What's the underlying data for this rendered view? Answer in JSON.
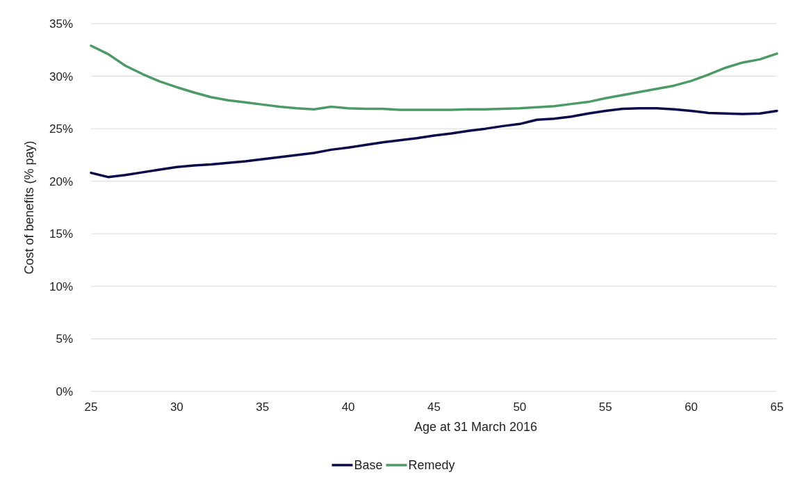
{
  "chart_data": {
    "type": "line",
    "xlabel": "Age at 31 March 2016",
    "ylabel": "Cost of benefits (% pay)",
    "x": [
      25,
      26,
      27,
      28,
      29,
      30,
      31,
      32,
      33,
      34,
      35,
      36,
      37,
      38,
      39,
      40,
      41,
      42,
      43,
      44,
      45,
      46,
      47,
      48,
      49,
      50,
      51,
      52,
      53,
      54,
      55,
      56,
      57,
      58,
      59,
      60,
      61,
      62,
      63,
      64,
      65
    ],
    "xlim": [
      25,
      65
    ],
    "xticks": [
      25,
      30,
      35,
      40,
      45,
      50,
      55,
      60,
      65
    ],
    "ylim": [
      0,
      35
    ],
    "yticks": [
      {
        "value": 0,
        "label": "0%"
      },
      {
        "value": 5,
        "label": "5%"
      },
      {
        "value": 10,
        "label": "10%"
      },
      {
        "value": 15,
        "label": "15%"
      },
      {
        "value": 20,
        "label": "20%"
      },
      {
        "value": 25,
        "label": "25%"
      },
      {
        "value": 30,
        "label": "30%"
      },
      {
        "value": 35,
        "label": "35%"
      }
    ],
    "grid": "y",
    "legend": "bottom",
    "marker": "none",
    "line_style": "solid",
    "series": [
      {
        "name": "Base",
        "color": "#0a0a4a",
        "values": [
          20.8,
          20.4,
          20.6,
          20.85,
          21.1,
          21.35,
          21.5,
          21.6,
          21.75,
          21.9,
          22.1,
          22.3,
          22.5,
          22.7,
          23.0,
          23.2,
          23.45,
          23.7,
          23.9,
          24.1,
          24.35,
          24.55,
          24.8,
          25.0,
          25.25,
          25.45,
          25.85,
          25.95,
          26.15,
          26.45,
          26.7,
          26.9,
          26.95,
          26.95,
          26.85,
          26.7,
          26.5,
          26.45,
          26.4,
          26.45,
          26.7
        ]
      },
      {
        "name": "Remedy",
        "color": "#4e9a66",
        "values": [
          32.9,
          32.1,
          31.0,
          30.2,
          29.5,
          28.95,
          28.45,
          28.0,
          27.7,
          27.5,
          27.3,
          27.1,
          26.95,
          26.85,
          27.1,
          26.95,
          26.9,
          26.9,
          26.8,
          26.8,
          26.8,
          26.8,
          26.85,
          26.85,
          26.9,
          26.95,
          27.05,
          27.15,
          27.35,
          27.55,
          27.9,
          28.2,
          28.5,
          28.8,
          29.1,
          29.55,
          30.15,
          30.8,
          31.3,
          31.6,
          32.15
        ]
      }
    ]
  }
}
